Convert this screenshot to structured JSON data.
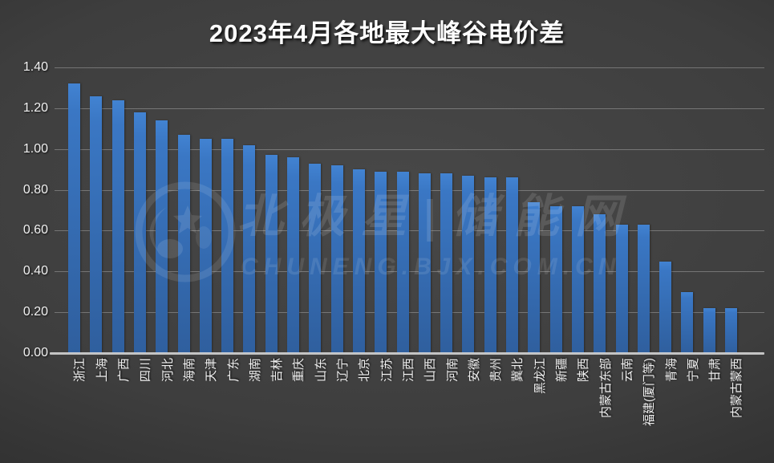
{
  "title": "2023年4月各地最大峰谷电价差",
  "watermark": {
    "brand": "北极星|储能网",
    "url": "CHUNENG.BJX.COM.CN",
    "logo": "bjx-panda-logo"
  },
  "colors": {
    "bar_top": "#3d7cc9",
    "bar_bottom": "#2f5d9b",
    "background_center": "#474747",
    "background_edge": "#1c1c1c",
    "gridline": "rgba(255,255,255,0.28)",
    "axis_line": "#dcdcdc",
    "text": "#f2f2f2"
  },
  "chart_data": {
    "type": "bar",
    "title": "2023年4月各地最大峰谷电价差",
    "xlabel": "",
    "ylabel": "",
    "ylim": [
      0,
      1.4
    ],
    "ytick_step": 0.2,
    "ytick_labels": [
      "0.00",
      "0.20",
      "0.40",
      "0.60",
      "0.80",
      "1.00",
      "1.20",
      "1.40"
    ],
    "grid": true,
    "legend": false,
    "categories": [
      "浙江",
      "上海",
      "广西",
      "四川",
      "河北",
      "海南",
      "天津",
      "广东",
      "湖南",
      "吉林",
      "重庆",
      "山东",
      "辽宁",
      "北京",
      "江苏",
      "江西",
      "山西",
      "河南",
      "安徽",
      "贵州",
      "冀北",
      "黑龙江",
      "新疆",
      "陕西",
      "内蒙古东部",
      "云南",
      "福建(厦门等)",
      "青海",
      "宁夏",
      "甘肃",
      "内蒙古蒙西"
    ],
    "values": [
      1.32,
      1.26,
      1.24,
      1.18,
      1.14,
      1.07,
      1.05,
      1.05,
      1.02,
      0.97,
      0.96,
      0.93,
      0.92,
      0.9,
      0.89,
      0.89,
      0.88,
      0.88,
      0.87,
      0.86,
      0.86,
      0.74,
      0.72,
      0.72,
      0.68,
      0.63,
      0.63,
      0.45,
      0.3,
      0.22,
      0.22
    ]
  }
}
